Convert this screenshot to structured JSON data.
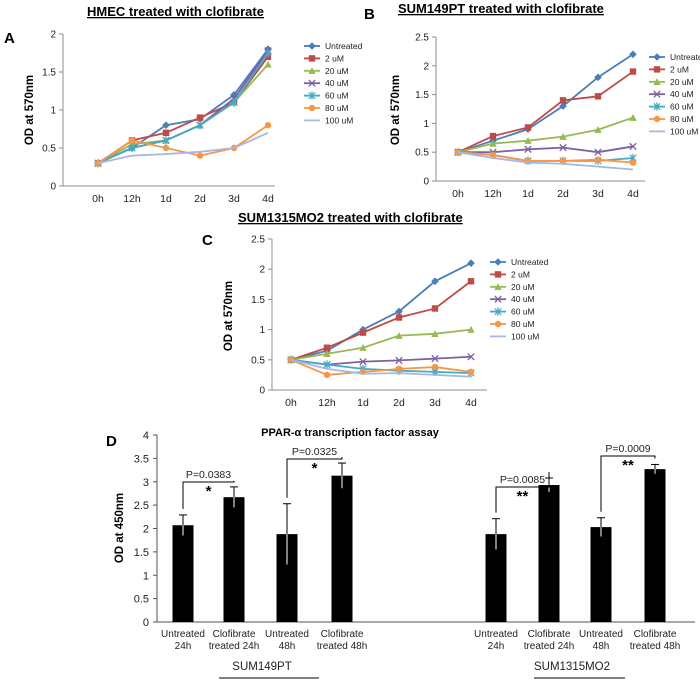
{
  "panels": {
    "A": {
      "letter": "A",
      "title": "HMEC treated with clofibrate"
    },
    "B": {
      "letter": "B",
      "title": "SUM149PT treated with clofibrate"
    },
    "C": {
      "letter": "C",
      "title": "SUM1315MO2 treated with clofibrate"
    },
    "D": {
      "letter": "D",
      "title": "PPAR-α transcription factor assay"
    }
  },
  "colors": {
    "Untreated": "#4a7ebb",
    "2 uM": "#be4b48",
    "20 uM": "#98b954",
    "40 uM": "#7d60a0",
    "60 uM": "#46aac5",
    "80 uM": "#f79646",
    "100 uM": "#a5b7e3",
    "bar": "#000000"
  },
  "chart_data": [
    {
      "type": "line",
      "panel": "A",
      "title": "HMEC treated with clofibrate",
      "ylabel": "OD at 570nm",
      "xlabel": "",
      "categories": [
        "0h",
        "12h",
        "1d",
        "2d",
        "3d",
        "4d"
      ],
      "ylim": [
        0,
        2
      ],
      "yticks": [
        "0",
        "0.5",
        "1",
        "1.5",
        "2"
      ],
      "legend": "right",
      "series": [
        {
          "name": "Untreated",
          "marker": "diamond",
          "values": [
            0.3,
            0.5,
            0.8,
            0.88,
            1.2,
            1.8
          ]
        },
        {
          "name": "2 uM",
          "marker": "square",
          "values": [
            0.3,
            0.6,
            0.7,
            0.9,
            1.1,
            1.7
          ]
        },
        {
          "name": "20 uM",
          "marker": "triangle",
          "values": [
            0.3,
            0.55,
            0.6,
            0.8,
            1.1,
            1.6
          ]
        },
        {
          "name": "40 uM",
          "marker": "x",
          "values": [
            0.3,
            0.5,
            0.6,
            0.8,
            1.15,
            1.78
          ]
        },
        {
          "name": "60 uM",
          "marker": "star",
          "values": [
            0.3,
            0.5,
            0.6,
            0.8,
            1.1,
            1.75
          ]
        },
        {
          "name": "80 uM",
          "marker": "circle",
          "values": [
            0.3,
            0.6,
            0.5,
            0.4,
            0.5,
            0.8
          ]
        },
        {
          "name": "100 uM",
          "marker": "none",
          "values": [
            0.3,
            0.4,
            0.42,
            0.45,
            0.5,
            0.7
          ]
        }
      ]
    },
    {
      "type": "line",
      "panel": "B",
      "title": "SUM149PT treated with clofibrate",
      "ylabel": "OD at 570nm",
      "xlabel": "",
      "categories": [
        "0h",
        "12h",
        "1d",
        "2d",
        "3d",
        "4d"
      ],
      "ylim": [
        0,
        2.5
      ],
      "yticks": [
        "0",
        "0.5",
        "1",
        "1.5",
        "2",
        "2.5"
      ],
      "legend": "right",
      "series": [
        {
          "name": "Untreated",
          "marker": "diamond",
          "values": [
            0.5,
            0.7,
            0.9,
            1.3,
            1.8,
            2.2
          ]
        },
        {
          "name": "2 uM",
          "marker": "square",
          "values": [
            0.5,
            0.78,
            0.93,
            1.4,
            1.47,
            1.9
          ]
        },
        {
          "name": "20 uM",
          "marker": "triangle",
          "values": [
            0.5,
            0.65,
            0.7,
            0.77,
            0.89,
            1.1
          ]
        },
        {
          "name": "40 uM",
          "marker": "x",
          "values": [
            0.5,
            0.5,
            0.55,
            0.58,
            0.5,
            0.6
          ]
        },
        {
          "name": "60 uM",
          "marker": "star",
          "values": [
            0.5,
            0.45,
            0.35,
            0.35,
            0.35,
            0.4
          ]
        },
        {
          "name": "80 uM",
          "marker": "circle",
          "values": [
            0.5,
            0.45,
            0.35,
            0.35,
            0.37,
            0.32
          ]
        },
        {
          "name": "100 uM",
          "marker": "none",
          "values": [
            0.5,
            0.4,
            0.32,
            0.3,
            0.25,
            0.2
          ]
        }
      ]
    },
    {
      "type": "line",
      "panel": "C",
      "title": "SUM1315MO2 treated with clofibrate",
      "ylabel": "OD at 570nm",
      "xlabel": "",
      "categories": [
        "0h",
        "12h",
        "1d",
        "2d",
        "3d",
        "4d"
      ],
      "ylim": [
        0,
        2.5
      ],
      "yticks": [
        "0",
        "0.5",
        "1",
        "1.5",
        "2",
        "2.5"
      ],
      "legend": "right",
      "series": [
        {
          "name": "Untreated",
          "marker": "diamond",
          "values": [
            0.5,
            0.65,
            1.0,
            1.3,
            1.8,
            2.1
          ]
        },
        {
          "name": "2 uM",
          "marker": "square",
          "values": [
            0.5,
            0.7,
            0.95,
            1.2,
            1.35,
            1.8
          ]
        },
        {
          "name": "20 uM",
          "marker": "triangle",
          "values": [
            0.5,
            0.6,
            0.7,
            0.9,
            0.93,
            1.0
          ]
        },
        {
          "name": "40 uM",
          "marker": "x",
          "values": [
            0.5,
            0.42,
            0.47,
            0.49,
            0.52,
            0.55
          ]
        },
        {
          "name": "60 uM",
          "marker": "star",
          "values": [
            0.5,
            0.42,
            0.35,
            0.32,
            0.3,
            0.28
          ]
        },
        {
          "name": "80 uM",
          "marker": "circle",
          "values": [
            0.5,
            0.25,
            0.3,
            0.35,
            0.38,
            0.3
          ]
        },
        {
          "name": "100 uM",
          "marker": "none",
          "values": [
            0.5,
            0.35,
            0.27,
            0.28,
            0.25,
            0.22
          ]
        }
      ]
    },
    {
      "type": "bar",
      "panel": "D",
      "title": "PPAR-α transcription factor assay",
      "ylabel": "OD at 450nm",
      "xlabel": "",
      "ylim": [
        0,
        4
      ],
      "yticks": [
        "0",
        "0.5",
        "1",
        "1.5",
        "2",
        "2.5",
        "3",
        "3.5",
        "4"
      ],
      "categories": [
        {
          "line1": "Untreated",
          "line2": "24h"
        },
        {
          "line1": "Clofibrate",
          "line2": "treated 24h"
        },
        {
          "line1": "Untreated",
          "line2": "48h"
        },
        {
          "line1": "Clofibrate",
          "line2": "treated 48h"
        },
        {
          "line1": "Untreated",
          "line2": "24h"
        },
        {
          "line1": "Clofibrate",
          "line2": "treated 24h"
        },
        {
          "line1": "Untreated",
          "line2": "48h"
        },
        {
          "line1": "Clofibrate",
          "line2": "treated 48h"
        }
      ],
      "values": [
        2.07,
        2.67,
        1.88,
        3.13,
        1.88,
        2.93,
        2.03,
        3.27
      ],
      "errors": [
        0.22,
        0.22,
        0.65,
        0.27,
        0.33,
        0.15,
        0.2,
        0.1
      ],
      "groups": [
        {
          "label": "SUM149PT",
          "bars": [
            0,
            1,
            2,
            3
          ]
        },
        {
          "label": "SUM1315MO2",
          "bars": [
            4,
            5,
            6,
            7
          ]
        }
      ],
      "significance": [
        {
          "from": 0,
          "to": 1,
          "p": "P=0.0383",
          "stars": "*"
        },
        {
          "from": 2,
          "to": 3,
          "p": "P=0.0325",
          "stars": "*"
        },
        {
          "from": 4,
          "to": 5,
          "p": "P=0.0085",
          "stars": "**"
        },
        {
          "from": 6,
          "to": 7,
          "p": "P=0.0009",
          "stars": "**"
        }
      ]
    }
  ]
}
